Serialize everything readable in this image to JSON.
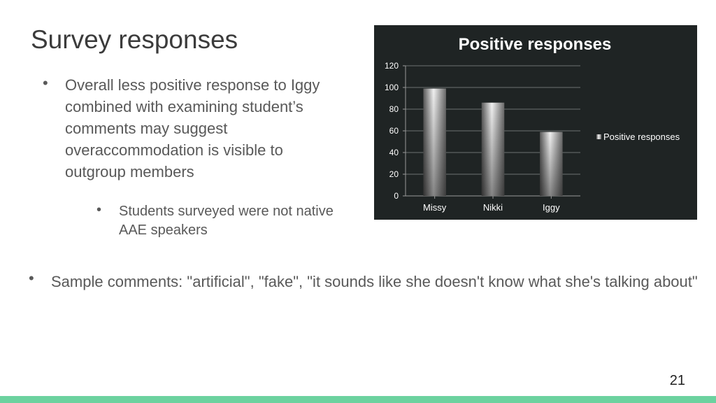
{
  "slide": {
    "title": "Survey responses",
    "bullets": [
      "Overall less positive response to Iggy combined with examining student’s comments may suggest overaccommodation is visible to outgroup members",
      "Students surveyed were not native AAE speakers",
      "Sample comments: \"artificial\", \"fake\", \"it sounds like she doesn't know what she's talking about\""
    ],
    "bullet_symbol": "•",
    "page_number": "21"
  },
  "colors": {
    "background": "#ffffff",
    "title": "#3b3b3b",
    "body_text": "#595959",
    "chart_background": "#1f2424",
    "accent_bar": "#6cd29f"
  },
  "chart_data": {
    "type": "bar",
    "title": "Positive responses",
    "categories": [
      "Missy",
      "Nikki",
      "Iggy"
    ],
    "series": [
      {
        "name": "Positive responses",
        "values": [
          99,
          86,
          59
        ]
      }
    ],
    "ylim": [
      0,
      120
    ],
    "yticks": [
      0,
      20,
      40,
      60,
      80,
      100,
      120
    ],
    "grid": true,
    "legend": "right",
    "xlabel": "",
    "ylabel": ""
  }
}
